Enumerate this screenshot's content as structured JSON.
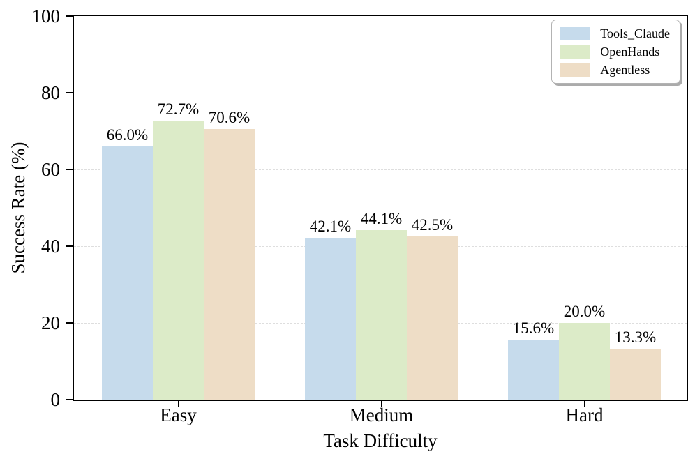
{
  "chart_data": {
    "type": "bar",
    "title": "",
    "xlabel": "Task Difficulty",
    "ylabel": "Success Rate (%)",
    "categories": [
      "Easy",
      "Medium",
      "Hard"
    ],
    "series": [
      {
        "name": "Tools_Claude",
        "color": "#c6dbec",
        "values": [
          66.0,
          42.1,
          15.6
        ]
      },
      {
        "name": "OpenHands",
        "color": "#dcebc8",
        "values": [
          72.7,
          44.1,
          20.0
        ]
      },
      {
        "name": "Agentless",
        "color": "#eeddc6",
        "values": [
          70.6,
          42.5,
          13.3
        ]
      }
    ],
    "value_labels": [
      [
        "66.0%",
        "42.1%",
        "15.6%"
      ],
      [
        "72.7%",
        "44.1%",
        "20.0%"
      ],
      [
        "70.6%",
        "42.5%",
        "13.3%"
      ]
    ],
    "ylim": [
      0,
      100
    ],
    "yticks": [
      0,
      20,
      40,
      60,
      80,
      100
    ],
    "grid": "horizontal-dashed",
    "legend_position": "upper-right",
    "legend": [
      "Tools_Claude",
      "OpenHands",
      "Agentless"
    ]
  },
  "colors": {
    "grid": "#dedede",
    "spine": "#000000",
    "text": "#000000",
    "legend_border": "#b3b3b3",
    "legend_shadow": "#ababab",
    "background": "#ffffff"
  }
}
